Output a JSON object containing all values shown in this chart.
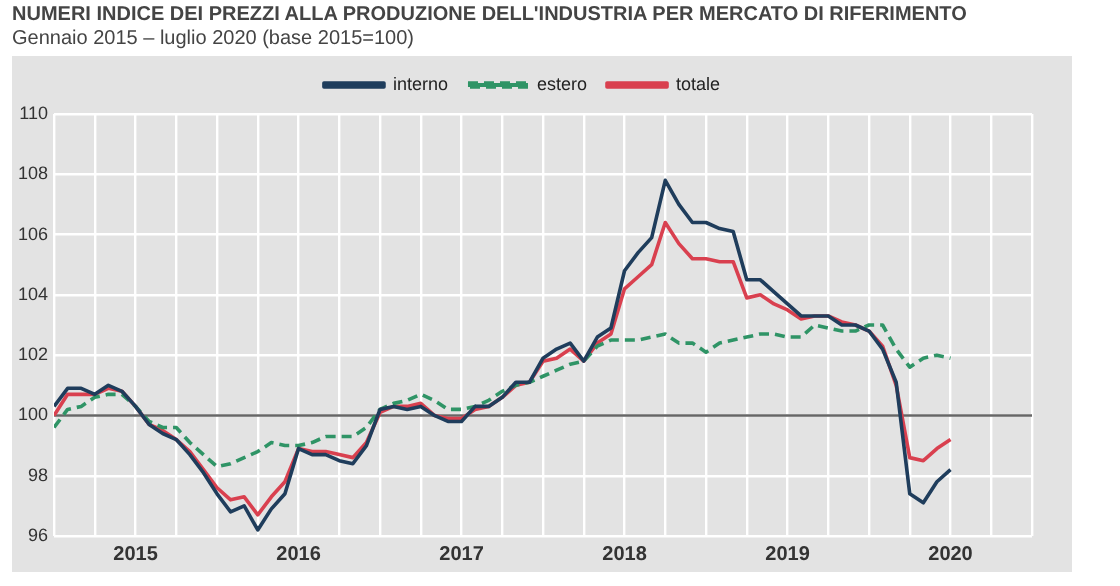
{
  "chart_data": {
    "type": "line",
    "title": "NUMERI INDICE DEI PREZZI ALLA PRODUZIONE DELL'INDUSTRIA PER MERCATO DI RIFERIMENTO",
    "subtitle": "Gennaio 2015 – luglio 2020 (base 2015=100)",
    "x": [
      "2015-01",
      "2015-02",
      "2015-03",
      "2015-04",
      "2015-05",
      "2015-06",
      "2015-07",
      "2015-08",
      "2015-09",
      "2015-10",
      "2015-11",
      "2015-12",
      "2016-01",
      "2016-02",
      "2016-03",
      "2016-04",
      "2016-05",
      "2016-06",
      "2016-07",
      "2016-08",
      "2016-09",
      "2016-10",
      "2016-11",
      "2016-12",
      "2017-01",
      "2017-02",
      "2017-03",
      "2017-04",
      "2017-05",
      "2017-06",
      "2017-07",
      "2017-08",
      "2017-09",
      "2017-10",
      "2017-11",
      "2017-12",
      "2018-01",
      "2018-02",
      "2018-03",
      "2018-04",
      "2018-05",
      "2018-06",
      "2018-07",
      "2018-08",
      "2018-09",
      "2018-10",
      "2018-11",
      "2018-12",
      "2019-01",
      "2019-02",
      "2019-03",
      "2019-04",
      "2019-05",
      "2019-06",
      "2019-07",
      "2019-08",
      "2019-09",
      "2019-10",
      "2019-11",
      "2019-12",
      "2020-01",
      "2020-02",
      "2020-03",
      "2020-04",
      "2020-05",
      "2020-06",
      "2020-07"
    ],
    "series": [
      {
        "name": "interno",
        "color": "#1f3d5c",
        "line_style": "solid",
        "values": [
          100.3,
          100.9,
          100.9,
          100.7,
          101.0,
          100.8,
          100.3,
          99.7,
          99.4,
          99.2,
          98.7,
          98.1,
          97.4,
          96.8,
          97.0,
          96.2,
          96.9,
          97.4,
          98.9,
          98.7,
          98.7,
          98.5,
          98.4,
          99.0,
          100.2,
          100.3,
          100.2,
          100.3,
          100.0,
          99.8,
          99.8,
          100.3,
          100.3,
          100.6,
          101.1,
          101.1,
          101.9,
          102.2,
          102.4,
          101.8,
          102.6,
          102.9,
          104.8,
          105.4,
          105.9,
          107.8,
          107.0,
          106.4,
          106.4,
          106.2,
          106.1,
          104.5,
          104.5,
          104.1,
          103.7,
          103.3,
          103.3,
          103.3,
          103.0,
          103.0,
          102.8,
          102.2,
          101.1,
          97.4,
          97.1,
          97.8,
          98.2
        ]
      },
      {
        "name": "estero",
        "color": "#2f9466",
        "line_style": "dashed",
        "values": [
          99.6,
          100.2,
          100.3,
          100.6,
          100.7,
          100.7,
          100.3,
          99.8,
          99.6,
          99.6,
          99.1,
          98.7,
          98.3,
          98.4,
          98.6,
          98.8,
          99.1,
          99.0,
          99.0,
          99.1,
          99.3,
          99.3,
          99.3,
          99.6,
          100.2,
          100.4,
          100.5,
          100.7,
          100.5,
          100.2,
          100.2,
          100.3,
          100.5,
          100.8,
          101.0,
          101.1,
          101.3,
          101.5,
          101.7,
          101.8,
          102.3,
          102.5,
          102.5,
          102.5,
          102.6,
          102.7,
          102.4,
          102.4,
          102.1,
          102.4,
          102.5,
          102.6,
          102.7,
          102.7,
          102.6,
          102.6,
          103.0,
          102.9,
          102.8,
          102.8,
          103.0,
          103.0,
          102.2,
          101.6,
          101.9,
          102.0,
          101.9
        ]
      },
      {
        "name": "totale",
        "color": "#d9404f",
        "line_style": "solid",
        "values": [
          100.0,
          100.7,
          100.7,
          100.7,
          100.9,
          100.8,
          100.3,
          99.7,
          99.5,
          99.2,
          98.8,
          98.2,
          97.6,
          97.2,
          97.3,
          96.7,
          97.3,
          97.8,
          98.9,
          98.8,
          98.8,
          98.7,
          98.6,
          99.1,
          100.1,
          100.3,
          100.3,
          100.4,
          100.0,
          99.9,
          99.9,
          100.2,
          100.3,
          100.6,
          101.0,
          101.1,
          101.8,
          101.9,
          102.2,
          101.8,
          102.4,
          102.7,
          104.2,
          104.6,
          105.0,
          106.4,
          105.7,
          105.2,
          105.2,
          105.1,
          105.1,
          103.9,
          104.0,
          103.7,
          103.5,
          103.2,
          103.3,
          103.3,
          103.1,
          103.0,
          102.8,
          102.3,
          101.0,
          98.6,
          98.5,
          98.9,
          99.2
        ]
      }
    ],
    "xlim": [
      "2015-01",
      "2021-01"
    ],
    "xticks": [
      {
        "value": "2015-01",
        "label": null
      },
      {
        "value": "2015-04",
        "label": null
      },
      {
        "value": "2015-07",
        "label": "2015"
      },
      {
        "value": "2015-10",
        "label": null
      },
      {
        "value": "2016-01",
        "label": null
      },
      {
        "value": "2016-04",
        "label": null
      },
      {
        "value": "2016-07",
        "label": "2016"
      },
      {
        "value": "2016-10",
        "label": null
      },
      {
        "value": "2017-01",
        "label": null
      },
      {
        "value": "2017-04",
        "label": null
      },
      {
        "value": "2017-07",
        "label": "2017"
      },
      {
        "value": "2017-10",
        "label": null
      },
      {
        "value": "2018-01",
        "label": null
      },
      {
        "value": "2018-04",
        "label": null
      },
      {
        "value": "2018-07",
        "label": "2018"
      },
      {
        "value": "2018-10",
        "label": null
      },
      {
        "value": "2019-01",
        "label": null
      },
      {
        "value": "2019-04",
        "label": null
      },
      {
        "value": "2019-07",
        "label": "2019"
      },
      {
        "value": "2019-10",
        "label": null
      },
      {
        "value": "2020-01",
        "label": null
      },
      {
        "value": "2020-04",
        "label": null
      },
      {
        "value": "2020-07",
        "label": "2020"
      },
      {
        "value": "2020-10",
        "label": null
      },
      {
        "value": "2021-01",
        "label": null
      }
    ],
    "ylim": [
      96,
      110
    ],
    "yticks": [
      96,
      98,
      100,
      102,
      104,
      106,
      108,
      110
    ],
    "ref_lines": [
      {
        "axis": "y",
        "value": 100,
        "label": null,
        "color": "#666666"
      }
    ],
    "grid": true,
    "legend": "top",
    "marker": "none"
  }
}
